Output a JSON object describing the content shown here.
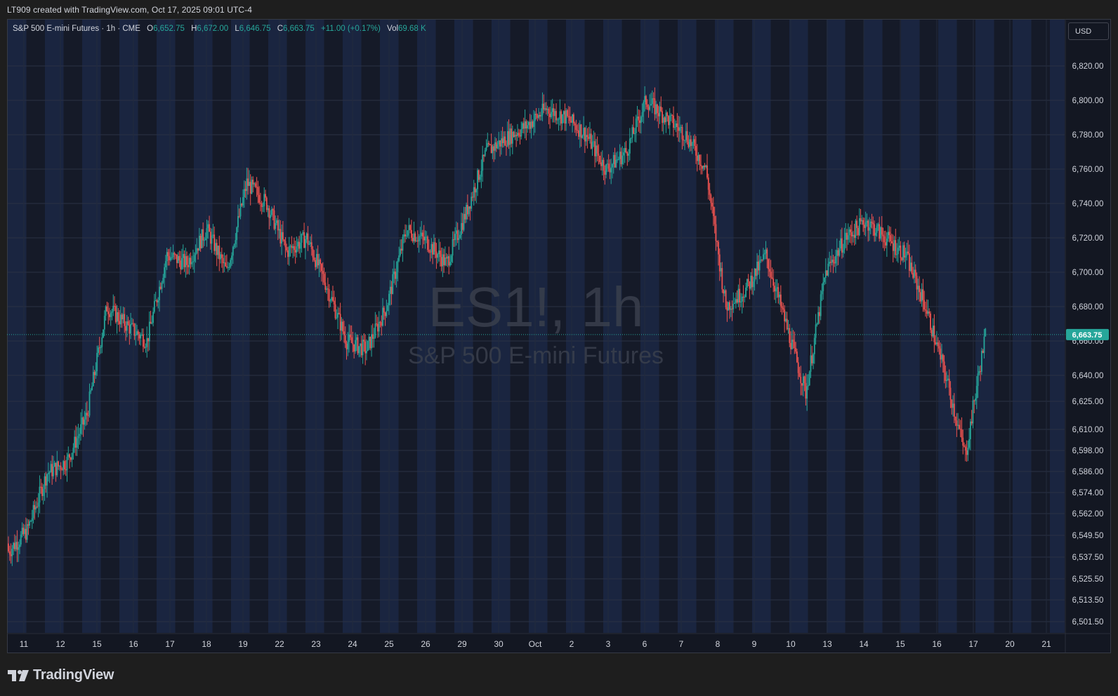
{
  "header": {
    "attribution": "LT909 created with TradingView.com, Oct 17, 2025 09:01 UTC-4"
  },
  "legend": {
    "symbol": "S&P 500 E-mini Futures · 1h · CME",
    "o_label": "O",
    "o": "6,652.75",
    "h_label": "H",
    "h": "6,672.00",
    "l_label": "L",
    "l": "6,646.75",
    "c_label": "C",
    "c": "6,663.75",
    "change": "+11.00 (+0.17%)",
    "vol_label": "Vol",
    "vol": "69.68 K"
  },
  "currency_button": "USD",
  "watermark": {
    "ticker": "ES1!, 1h",
    "name": "S&P 500 E-mini Futures"
  },
  "last_price_label": "6,663.75",
  "logo_text": "TradingView",
  "colors": {
    "up": "#26a69a",
    "down": "#ef5350",
    "background": "#131722",
    "session_band": "#1a2540"
  },
  "chart_data": {
    "type": "candlestick",
    "interval": "1h",
    "y_ticks": [
      6820,
      6800,
      6780,
      6760,
      6740,
      6720,
      6700,
      6680,
      6660,
      6640,
      6625,
      6610,
      6598,
      6586,
      6574,
      6562,
      6549.5,
      6537.5,
      6525.5,
      6513.5,
      6501.5
    ],
    "y_tick_labels": [
      "6,820.00",
      "6,800.00",
      "6,780.00",
      "6,760.00",
      "6,740.00",
      "6,720.00",
      "6,700.00",
      "6,680.00",
      "6,660.00",
      "6,640.00",
      "6,625.00",
      "6,610.00",
      "6,598.00",
      "6,586.00",
      "6,574.00",
      "6,562.00",
      "6,549.50",
      "6,537.50",
      "6,525.50",
      "6,513.50",
      "6,501.50"
    ],
    "x_labels": [
      "11",
      "12",
      "15",
      "16",
      "17",
      "18",
      "19",
      "22",
      "23",
      "24",
      "25",
      "26",
      "29",
      "30",
      "Oct",
      "2",
      "3",
      "6",
      "7",
      "8",
      "9",
      "10",
      "13",
      "14",
      "15",
      "16",
      "17",
      "20",
      "21"
    ],
    "last_price": 6663.75,
    "grid": true,
    "session_closes": [
      6540,
      6552,
      6585,
      6592,
      6618,
      6680,
      6669,
      6660,
      6710,
      6705,
      6725,
      6700,
      6752,
      6740,
      6712,
      6720,
      6692,
      6660,
      6655,
      6680,
      6725,
      6718,
      6705,
      6735,
      6770,
      6778,
      6785,
      6795,
      6790,
      6780,
      6760,
      6770,
      6800,
      6790,
      6780,
      6760,
      6680,
      6690,
      6710,
      6670,
      6630,
      6700,
      6720,
      6730,
      6720,
      6710,
      6680,
      6640,
      6595,
      6663.75
    ]
  }
}
